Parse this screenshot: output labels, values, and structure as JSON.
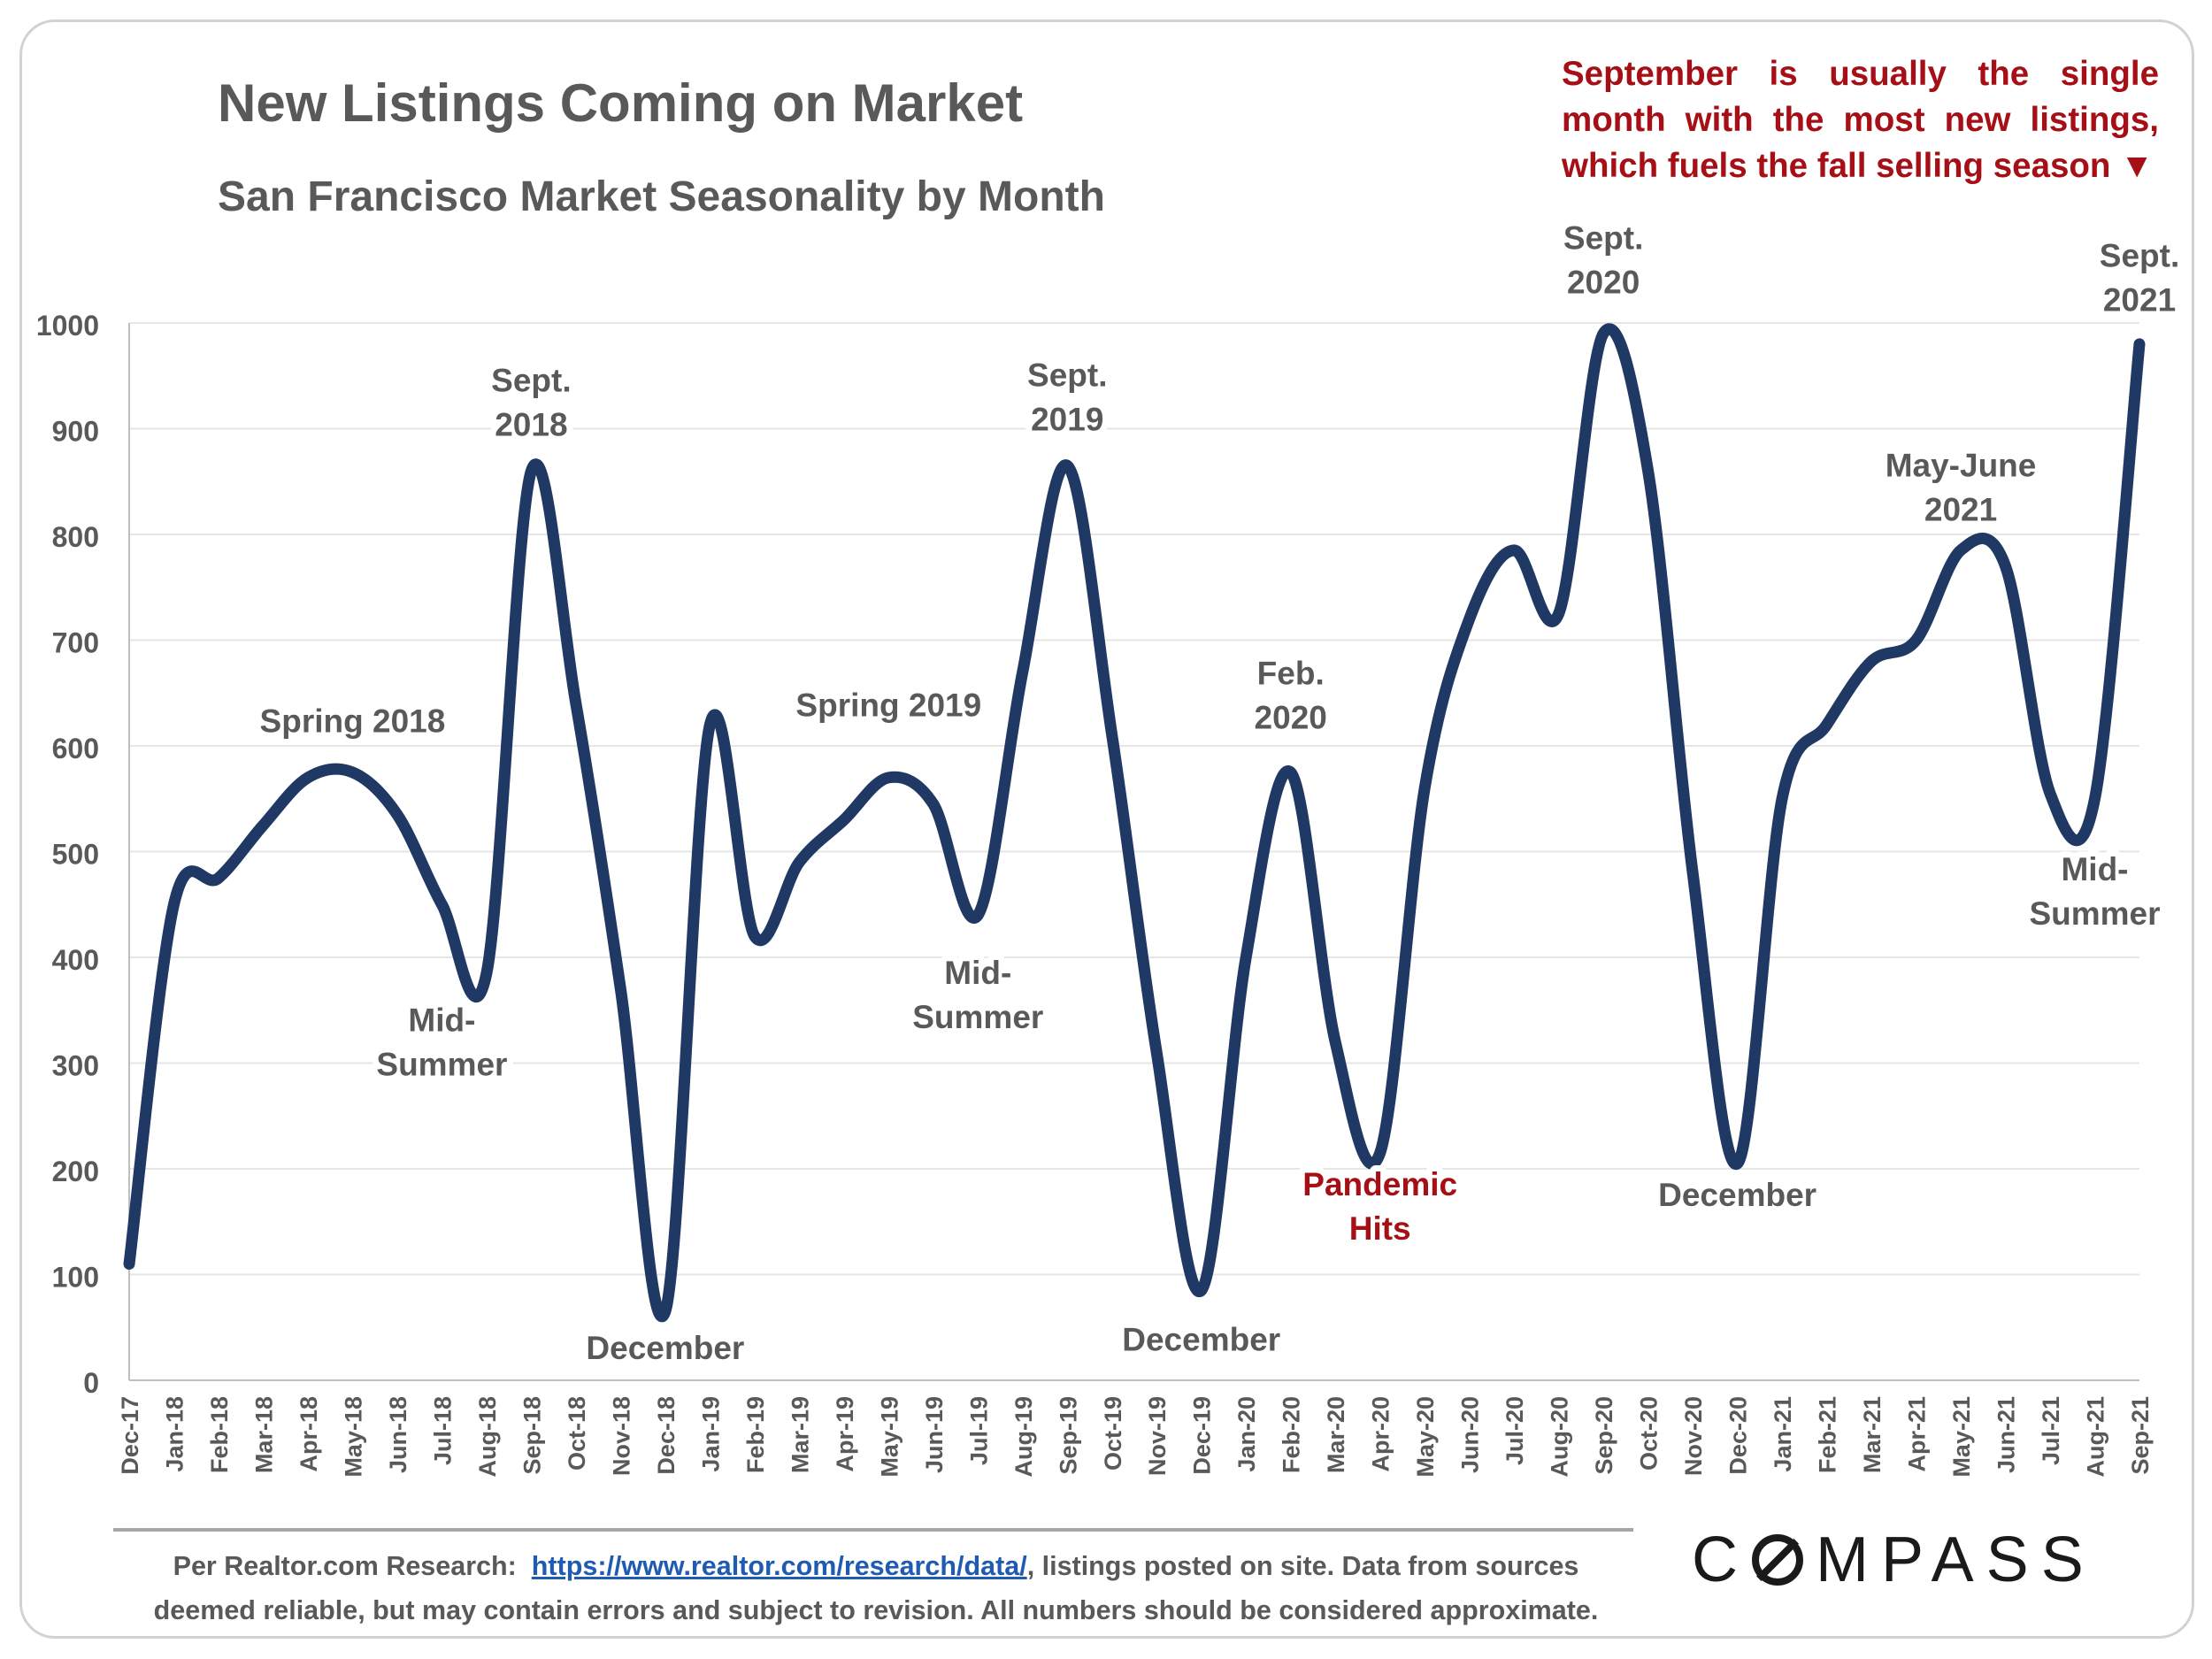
{
  "header": {
    "title": "New Listings Coming on Market",
    "subtitle": "San Francisco Market Seasonality by Month"
  },
  "callout": {
    "text": "September is usually the single month with the most new listings, which fuels the fall selling season ▼"
  },
  "footer": {
    "prefix": "Per Realtor.com Research:",
    "link_text": "https://www.realtor.com/research/data/",
    "line1_suffix": ", listings posted on site. Data from sources",
    "line2": "deemed reliable, but may contain errors and subject to revision. All numbers should be considered approximate."
  },
  "logo": {
    "text_before": "C",
    "text_after": "MPASS"
  },
  "colors": {
    "line": "#1f3864",
    "annotation": "#595959",
    "highlight": "#a50f15",
    "gridline": "#e6e6e6"
  },
  "chart_data": {
    "type": "line",
    "categories": [
      "Dec-17",
      "Jan-18",
      "Feb-18",
      "Mar-18",
      "Apr-18",
      "May-18",
      "Jun-18",
      "Jul-18",
      "Aug-18",
      "Sep-18",
      "Oct-18",
      "Nov-18",
      "Dec-18",
      "Jan-19",
      "Feb-19",
      "Mar-19",
      "Apr-19",
      "May-19",
      "Jun-19",
      "Jul-19",
      "Aug-19",
      "Sep-19",
      "Oct-19",
      "Nov-19",
      "Dec-19",
      "Jan-20",
      "Feb-20",
      "Mar-20",
      "Apr-20",
      "May-20",
      "Jun-20",
      "Jul-20",
      "Aug-20",
      "Sep-20",
      "Oct-20",
      "Nov-20",
      "Dec-20",
      "Jan-21",
      "Feb-21",
      "Mar-21",
      "Apr-21",
      "May-21",
      "Jun-21",
      "Jul-21",
      "Aug-21",
      "Sep-21"
    ],
    "values": [
      110,
      450,
      475,
      525,
      570,
      575,
      535,
      450,
      385,
      860,
      640,
      370,
      65,
      620,
      420,
      490,
      530,
      570,
      545,
      440,
      670,
      865,
      610,
      310,
      85,
      400,
      575,
      320,
      215,
      560,
      720,
      785,
      725,
      990,
      860,
      480,
      205,
      550,
      620,
      680,
      700,
      785,
      770,
      555,
      550,
      980
    ],
    "ylim": [
      0,
      1000
    ],
    "yticks": [
      0,
      100,
      200,
      300,
      400,
      500,
      600,
      700,
      800,
      900,
      1000
    ],
    "grid": true,
    "legend": "none",
    "annotations": [
      {
        "lines": [
          "Spring 2018"
        ],
        "x": "May-18",
        "y": 613,
        "style": "normal"
      },
      {
        "lines": [
          "Sept.",
          "2018"
        ],
        "x": "Sep-18",
        "y": 935,
        "style": "normal"
      },
      {
        "lines": [
          "Mid-",
          "Summer"
        ],
        "x": "Jul-18",
        "y": 330,
        "style": "normal"
      },
      {
        "lines": [
          "December"
        ],
        "x": "Dec-18",
        "y": 20,
        "style": "normal"
      },
      {
        "lines": [
          "Spring 2019"
        ],
        "x": "May-19",
        "y": 628,
        "style": "normal"
      },
      {
        "lines": [
          "Sept.",
          "2019"
        ],
        "x": "Sep-19",
        "y": 940,
        "style": "normal"
      },
      {
        "lines": [
          "Mid-",
          "Summer"
        ],
        "x": "Jul-19",
        "y": 375,
        "style": "normal"
      },
      {
        "lines": [
          "December"
        ],
        "x": "Dec-19",
        "y": 28,
        "style": "normal"
      },
      {
        "lines": [
          "Feb.",
          "2020"
        ],
        "x": "Feb-20",
        "y": 658,
        "style": "normal"
      },
      {
        "lines": [
          "Pandemic",
          "Hits"
        ],
        "x": "Apr-20",
        "y": 175,
        "style": "highlight"
      },
      {
        "lines": [
          "Sept.",
          "2020"
        ],
        "x": "Sep-20",
        "y": 1070,
        "style": "normal"
      },
      {
        "lines": [
          "December"
        ],
        "x": "Dec-20",
        "y": 165,
        "style": "normal"
      },
      {
        "lines": [
          "May-June",
          "2021"
        ],
        "x": "May-21",
        "y": 855,
        "style": "normal"
      },
      {
        "lines": [
          "Mid-",
          "Summer"
        ],
        "x": "Aug-21",
        "y": 473,
        "style": "normal"
      },
      {
        "lines": [
          "Sept.",
          "2021"
        ],
        "x": "Sep-21",
        "y": 1053,
        "style": "normal"
      }
    ]
  }
}
